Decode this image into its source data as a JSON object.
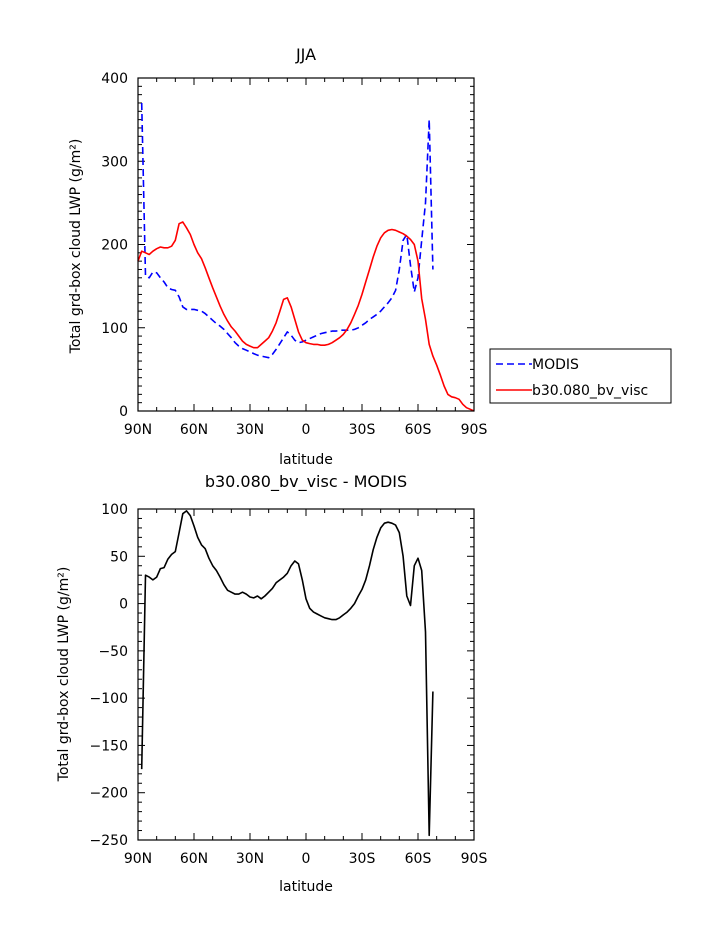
{
  "chart_data": [
    {
      "type": "line",
      "title": "JJA",
      "xlabel": "latitude",
      "ylabel": "Total grd-box cloud LWP (g/m²)",
      "xlim": [
        90,
        -90
      ],
      "ylim": [
        0,
        400
      ],
      "xticks": [
        90,
        60,
        30,
        0,
        -30,
        -60,
        -90
      ],
      "xtick_labels": [
        "90N",
        "60N",
        "30N",
        "0",
        "30S",
        "60S",
        "90S"
      ],
      "yticks": [
        0,
        100,
        200,
        300,
        400
      ],
      "ytick_labels": [
        "0",
        "100",
        "200",
        "300",
        "400"
      ],
      "grid": false,
      "legend_position": "outside-right",
      "series": [
        {
          "name": "MODIS",
          "color": "#0000ff",
          "style": "dashed",
          "x": [
            88,
            86,
            84,
            82,
            80,
            78,
            76,
            74,
            72,
            70,
            68,
            66,
            64,
            62,
            60,
            58,
            56,
            54,
            52,
            50,
            48,
            46,
            44,
            42,
            40,
            38,
            36,
            34,
            32,
            30,
            28,
            26,
            24,
            22,
            20,
            18,
            16,
            14,
            12,
            10,
            8,
            6,
            4,
            2,
            0,
            -2,
            -4,
            -6,
            -8,
            -10,
            -12,
            -14,
            -16,
            -18,
            -20,
            -22,
            -24,
            -26,
            -28,
            -30,
            -32,
            -34,
            -36,
            -38,
            -40,
            -42,
            -44,
            -46,
            -48,
            -50,
            -52,
            -54,
            -56,
            -58,
            -60,
            -62,
            -64,
            -66,
            -68
          ],
          "y": [
            370,
            162,
            160,
            167,
            166,
            160,
            155,
            148,
            146,
            145,
            137,
            125,
            122,
            122,
            122,
            121,
            120,
            117,
            113,
            109,
            105,
            102,
            98,
            93,
            88,
            82,
            78,
            75,
            73,
            71,
            69,
            67,
            66,
            65,
            64,
            68,
            74,
            81,
            88,
            95,
            91,
            85,
            82,
            83,
            85,
            87,
            89,
            91,
            93,
            94,
            95,
            96,
            96,
            97,
            97,
            97,
            97,
            98,
            100,
            103,
            106,
            110,
            113,
            116,
            120,
            125,
            130,
            136,
            145,
            170,
            205,
            212,
            175,
            143,
            160,
            205,
            250,
            350,
            170
          ]
        },
        {
          "name": "b30.080_bv_visc",
          "color": "#ff0000",
          "style": "solid",
          "x": [
            90,
            88,
            86,
            84,
            82,
            80,
            78,
            76,
            74,
            72,
            70,
            68,
            66,
            64,
            62,
            60,
            58,
            56,
            54,
            52,
            50,
            48,
            46,
            44,
            42,
            40,
            38,
            36,
            34,
            32,
            30,
            28,
            26,
            24,
            22,
            20,
            18,
            16,
            14,
            12,
            10,
            8,
            6,
            4,
            2,
            0,
            -2,
            -4,
            -6,
            -8,
            -10,
            -12,
            -14,
            -16,
            -18,
            -20,
            -22,
            -24,
            -26,
            -28,
            -30,
            -32,
            -34,
            -36,
            -38,
            -40,
            -42,
            -44,
            -46,
            -48,
            -50,
            -52,
            -54,
            -56,
            -58,
            -60,
            -62,
            -64,
            -66,
            -68,
            -70,
            -72,
            -74,
            -76,
            -78,
            -80,
            -82,
            -84,
            -86,
            -88,
            -90
          ],
          "y": [
            180,
            192,
            190,
            188,
            192,
            195,
            197,
            196,
            196,
            198,
            205,
            225,
            227,
            220,
            212,
            200,
            190,
            183,
            172,
            160,
            148,
            137,
            126,
            116,
            108,
            101,
            96,
            90,
            84,
            80,
            78,
            76,
            76,
            80,
            84,
            88,
            96,
            106,
            120,
            134,
            136,
            125,
            110,
            95,
            85,
            82,
            81,
            80,
            80,
            79,
            79,
            80,
            82,
            85,
            88,
            92,
            98,
            106,
            116,
            127,
            140,
            155,
            170,
            185,
            198,
            208,
            214,
            217,
            218,
            217,
            215,
            213,
            210,
            206,
            200,
            180,
            135,
            110,
            80,
            66,
            55,
            43,
            30,
            20,
            17,
            16,
            14,
            8,
            4,
            2,
            0
          ]
        }
      ]
    },
    {
      "type": "line",
      "title": "b30.080_bv_visc - MODIS",
      "xlabel": "latitude",
      "ylabel": "Total grd-box cloud LWP (g/m²)",
      "xlim": [
        90,
        -90
      ],
      "ylim": [
        -250,
        100
      ],
      "xticks": [
        90,
        60,
        30,
        0,
        -30,
        -60,
        -90
      ],
      "xtick_labels": [
        "90N",
        "60N",
        "30N",
        "0",
        "30S",
        "60S",
        "90S"
      ],
      "yticks": [
        -250,
        -200,
        -150,
        -100,
        -50,
        0,
        50,
        100
      ],
      "ytick_labels": [
        "−250",
        "−200",
        "−150",
        "−100",
        "−50",
        "0",
        "50",
        "100"
      ],
      "grid": false,
      "series": [
        {
          "color": "#000000",
          "style": "solid",
          "x": [
            88,
            86,
            84,
            82,
            80,
            78,
            76,
            74,
            72,
            70,
            68,
            66,
            64,
            62,
            60,
            58,
            56,
            54,
            52,
            50,
            48,
            46,
            44,
            42,
            40,
            38,
            36,
            34,
            32,
            30,
            28,
            26,
            24,
            22,
            20,
            18,
            16,
            14,
            12,
            10,
            8,
            6,
            4,
            2,
            0,
            -2,
            -4,
            -6,
            -8,
            -10,
            -12,
            -14,
            -16,
            -18,
            -20,
            -22,
            -24,
            -26,
            -28,
            -30,
            -32,
            -34,
            -36,
            -38,
            -40,
            -42,
            -44,
            -46,
            -48,
            -50,
            -52,
            -54,
            -56,
            -58,
            -60,
            -62,
            -64,
            -66,
            -68
          ],
          "y": [
            -175,
            30,
            28,
            25,
            28,
            37,
            38,
            47,
            52,
            55,
            75,
            95,
            98,
            93,
            82,
            70,
            62,
            58,
            48,
            40,
            35,
            28,
            20,
            14,
            12,
            10,
            10,
            12,
            10,
            7,
            6,
            8,
            5,
            8,
            12,
            16,
            22,
            25,
            28,
            32,
            40,
            45,
            42,
            25,
            5,
            -5,
            -9,
            -11,
            -13,
            -15,
            -16,
            -17,
            -17,
            -15,
            -12,
            -9,
            -5,
            0,
            8,
            15,
            25,
            40,
            57,
            70,
            80,
            85,
            86,
            85,
            83,
            75,
            50,
            8,
            -2,
            40,
            48,
            35,
            -30,
            -245,
            -93
          ]
        }
      ]
    }
  ]
}
